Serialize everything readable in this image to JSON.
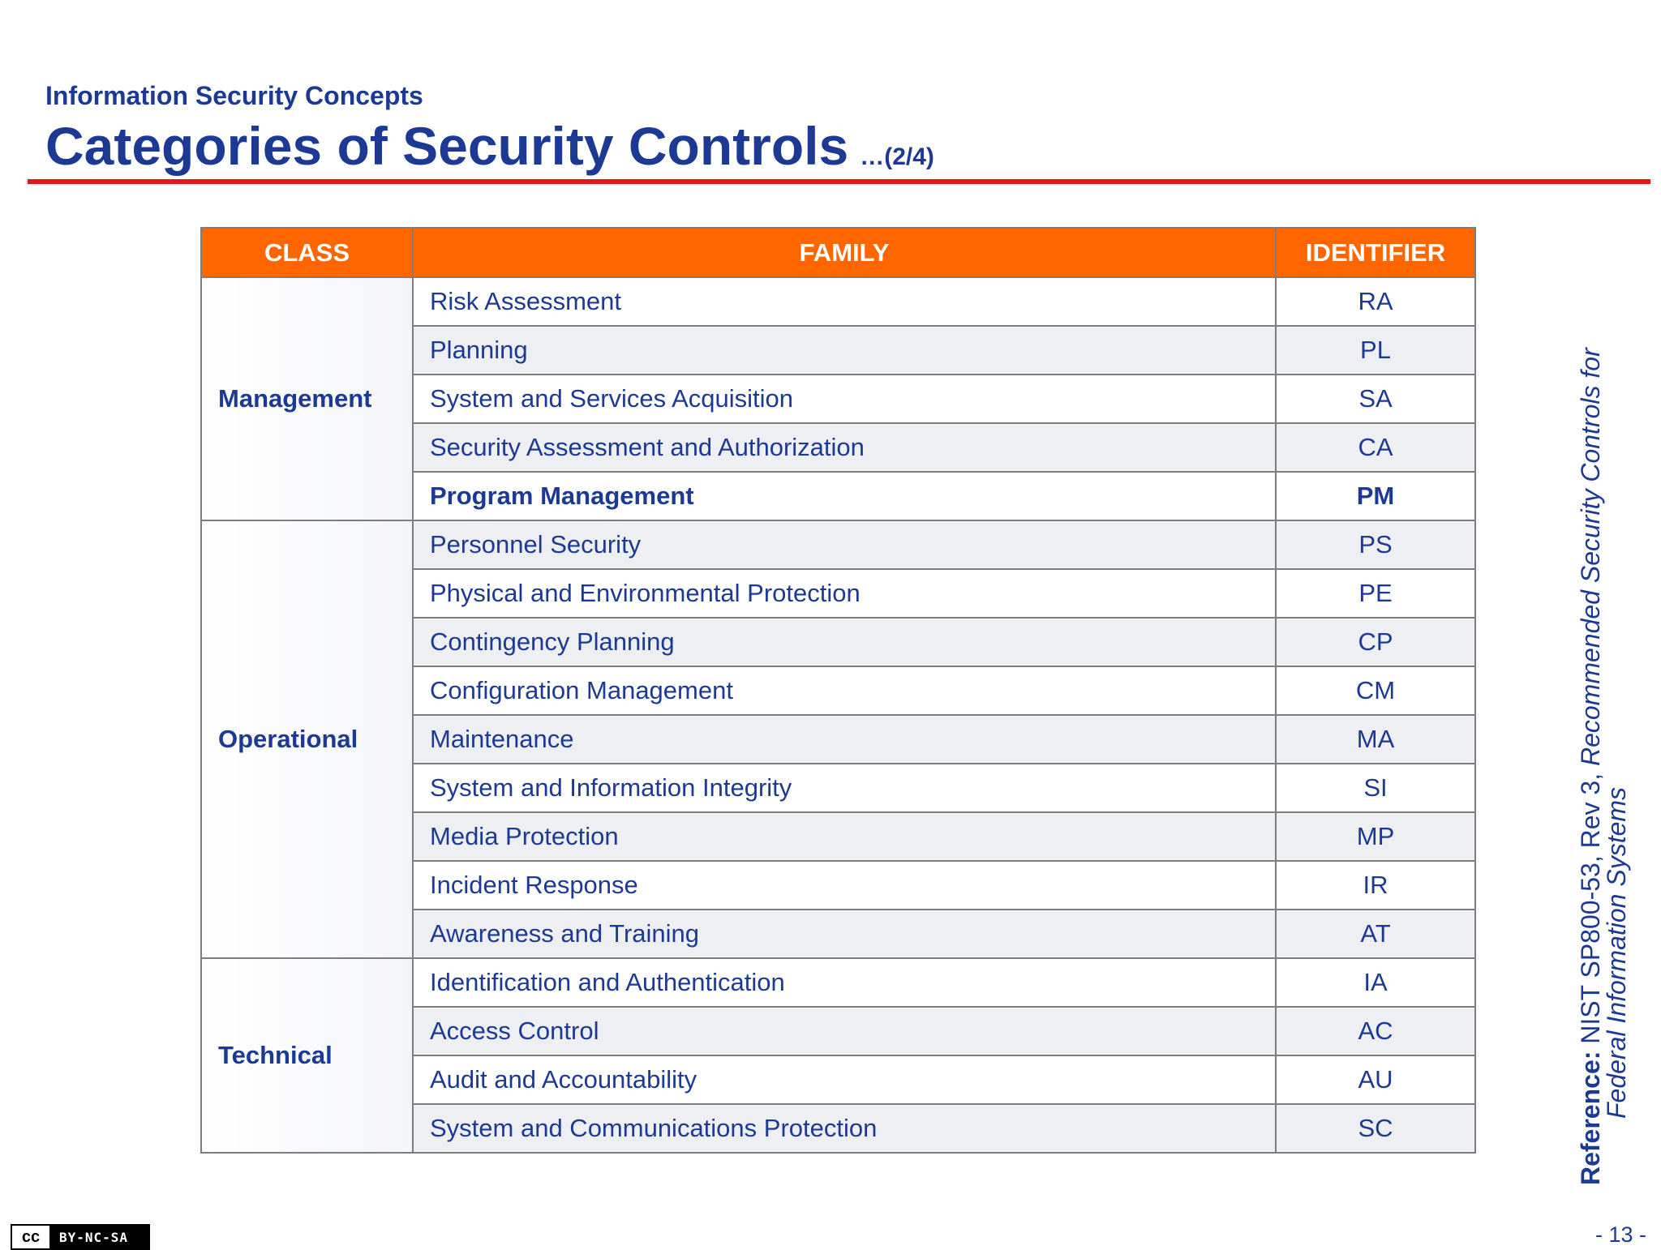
{
  "header": {
    "section": "Information Security Concepts",
    "title": "Categories of Security Controls",
    "part": "…(2/4)"
  },
  "table": {
    "columns": [
      "CLASS",
      "FAMILY",
      "IDENTIFIER"
    ],
    "groups": [
      {
        "class": "Management",
        "rows": [
          {
            "family": "Risk Assessment",
            "identifier": "RA"
          },
          {
            "family": "Planning",
            "identifier": "PL"
          },
          {
            "family": "System and Services Acquisition",
            "identifier": "SA"
          },
          {
            "family": "Security Assessment and Authorization",
            "identifier": "CA"
          },
          {
            "family": "Program Management",
            "identifier": "PM",
            "bold": true
          }
        ]
      },
      {
        "class": "Operational",
        "rows": [
          {
            "family": "Personnel Security",
            "identifier": "PS"
          },
          {
            "family": "Physical and Environmental Protection",
            "identifier": "PE"
          },
          {
            "family": "Contingency Planning",
            "identifier": "CP"
          },
          {
            "family": "Configuration Management",
            "identifier": "CM"
          },
          {
            "family": "Maintenance",
            "identifier": "MA"
          },
          {
            "family": "System and Information Integrity",
            "identifier": "SI"
          },
          {
            "family": "Media Protection",
            "identifier": "MP"
          },
          {
            "family": "Incident Response",
            "identifier": "IR"
          },
          {
            "family": "Awareness and Training",
            "identifier": "AT"
          }
        ]
      },
      {
        "class": "Technical",
        "rows": [
          {
            "family": "Identification and Authentication",
            "identifier": "IA"
          },
          {
            "family": "Access Control",
            "identifier": "AC"
          },
          {
            "family": "Audit and Accountability",
            "identifier": "AU"
          },
          {
            "family": "System and Communications Protection",
            "identifier": "SC"
          }
        ]
      }
    ]
  },
  "reference": {
    "label": "Reference:",
    "text": "NIST SP800-53, Rev 3,",
    "title_line1": "Recommended Security Controls for",
    "title_line2": "Federal Information Systems"
  },
  "footer": {
    "page": "- 13 -",
    "cc": "cc",
    "license": "BY-NC-SA"
  }
}
